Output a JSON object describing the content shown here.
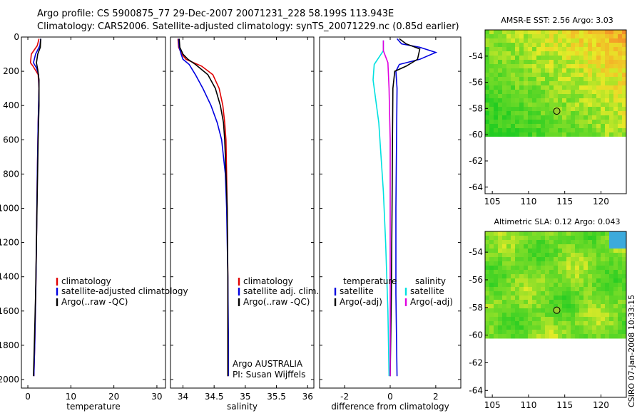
{
  "title": {
    "line1": "Argo profile: CS 5900875_77 29-Dec-2007 20071231_228 58.199S 113.943E",
    "line2": "Climatology: CARS2006. Satellite-adjusted climatology: synTS_20071229.nc (0.85d earlier)"
  },
  "colors": {
    "climatology": "#e00000",
    "satellite": "#0000e0",
    "argo": "#000000",
    "cyan": "#00e0e0",
    "magenta": "#e000e0"
  },
  "chart_data": [
    {
      "type": "line",
      "id": "temperature",
      "xlabel": "temperature",
      "xlim": [
        -1.5,
        32
      ],
      "ylim": [
        2050,
        0
      ],
      "xticks": [
        0,
        10,
        20,
        30
      ],
      "yticks": [
        0,
        200,
        400,
        600,
        800,
        1000,
        1200,
        1400,
        1600,
        1800,
        2000
      ],
      "series": [
        {
          "name": "climatology",
          "color": "#e00000",
          "points": [
            [
              2.6,
              10
            ],
            [
              2.2,
              50
            ],
            [
              0.8,
              100
            ],
            [
              0.6,
              150
            ],
            [
              1.2,
              170
            ],
            [
              2.4,
              220
            ],
            [
              2.6,
              300
            ],
            [
              2.4,
              500
            ],
            [
              2.2,
              800
            ],
            [
              2.1,
              1000
            ],
            [
              1.9,
              1400
            ],
            [
              1.6,
              1800
            ],
            [
              1.4,
              1980
            ]
          ]
        },
        {
          "name": "satellite-adjusted climatology",
          "color": "#0000e0",
          "points": [
            [
              3.0,
              10
            ],
            [
              2.8,
              50
            ],
            [
              1.8,
              100
            ],
            [
              1.3,
              150
            ],
            [
              2.0,
              180
            ],
            [
              2.5,
              220
            ],
            [
              2.6,
              300
            ],
            [
              2.4,
              500
            ],
            [
              2.2,
              800
            ],
            [
              2.1,
              1000
            ],
            [
              1.9,
              1400
            ],
            [
              1.6,
              1800
            ],
            [
              1.4,
              1980
            ]
          ]
        },
        {
          "name": "Argo(..raw -QC)",
          "color": "#000000",
          "points": [
            [
              3.0,
              10
            ],
            [
              2.9,
              60
            ],
            [
              2.3,
              100
            ],
            [
              2.0,
              150
            ],
            [
              2.3,
              190
            ],
            [
              2.6,
              250
            ],
            [
              2.6,
              400
            ],
            [
              2.4,
              600
            ],
            [
              2.2,
              900
            ],
            [
              2.0,
              1200
            ],
            [
              1.8,
              1500
            ],
            [
              1.5,
              1800
            ],
            [
              1.3,
              1980
            ]
          ]
        }
      ],
      "legend": [
        "climatology",
        "satellite-adjusted climatology",
        "Argo(..raw -QC)"
      ]
    },
    {
      "type": "line",
      "id": "salinity",
      "xlabel": "salinity",
      "xlim": [
        33.8,
        36.1
      ],
      "ylim": [
        2050,
        0
      ],
      "xticks": [
        34,
        34.5,
        35,
        35.5,
        36
      ],
      "yticks": [],
      "series": [
        {
          "name": "climatology",
          "color": "#e00000",
          "points": [
            [
              33.92,
              10
            ],
            [
              33.93,
              60
            ],
            [
              33.98,
              100
            ],
            [
              34.05,
              130
            ],
            [
              34.3,
              170
            ],
            [
              34.48,
              220
            ],
            [
              34.58,
              300
            ],
            [
              34.64,
              400
            ],
            [
              34.67,
              500
            ],
            [
              34.69,
              600
            ],
            [
              34.7,
              800
            ],
            [
              34.71,
              1000
            ],
            [
              34.72,
              1400
            ],
            [
              34.72,
              1800
            ],
            [
              34.72,
              1980
            ]
          ]
        },
        {
          "name": "satellite adj. clim.",
          "color": "#0000e0",
          "points": [
            [
              33.93,
              10
            ],
            [
              33.94,
              60
            ],
            [
              33.97,
              100
            ],
            [
              34.0,
              130
            ],
            [
              34.1,
              160
            ],
            [
              34.2,
              220
            ],
            [
              34.32,
              300
            ],
            [
              34.45,
              400
            ],
            [
              34.55,
              500
            ],
            [
              34.62,
              600
            ],
            [
              34.68,
              800
            ],
            [
              34.7,
              1000
            ],
            [
              34.72,
              1400
            ],
            [
              34.73,
              1800
            ],
            [
              34.73,
              1980
            ]
          ]
        },
        {
          "name": "Argo(..raw -QC)",
          "color": "#000000",
          "points": [
            [
              33.94,
              10
            ],
            [
              33.95,
              60
            ],
            [
              34.0,
              100
            ],
            [
              34.08,
              130
            ],
            [
              34.2,
              160
            ],
            [
              34.4,
              220
            ],
            [
              34.52,
              300
            ],
            [
              34.6,
              400
            ],
            [
              34.65,
              500
            ],
            [
              34.67,
              600
            ],
            [
              34.69,
              800
            ],
            [
              34.71,
              1000
            ],
            [
              34.72,
              1400
            ],
            [
              34.72,
              1800
            ],
            [
              34.72,
              1980
            ]
          ]
        }
      ],
      "legend": [
        "climatology",
        "satellite adj. clim.",
        "Argo(..raw -QC)"
      ],
      "annotation": [
        "Argo AUSTRALIA",
        "PI: Susan Wijffels"
      ]
    },
    {
      "type": "line",
      "id": "difference",
      "xlabel": "difference from climatology",
      "xlim": [
        -3.1,
        3.1
      ],
      "ylim": [
        2050,
        0
      ],
      "xticks": [
        -2,
        0,
        2
      ],
      "yticks": [],
      "series": [
        {
          "name": "temperature satellite",
          "color": "#0000e0",
          "points": [
            [
              0.3,
              10
            ],
            [
              0.5,
              40
            ],
            [
              1.3,
              60
            ],
            [
              2.0,
              90
            ],
            [
              1.3,
              130
            ],
            [
              0.4,
              160
            ],
            [
              0.25,
              200
            ],
            [
              0.3,
              300
            ],
            [
              0.28,
              600
            ],
            [
              0.25,
              1000
            ],
            [
              0.25,
              1500
            ],
            [
              0.3,
              1980
            ]
          ]
        },
        {
          "name": "temperature Argo(-adj)",
          "color": "#000000",
          "points": [
            [
              0.4,
              10
            ],
            [
              0.7,
              40
            ],
            [
              1.3,
              70
            ],
            [
              1.2,
              130
            ],
            [
              0.7,
              170
            ],
            [
              0.2,
              200
            ],
            [
              0.12,
              300
            ],
            [
              0.1,
              600
            ],
            [
              0.08,
              1000
            ],
            [
              0.05,
              1500
            ],
            [
              0.0,
              1980
            ]
          ]
        },
        {
          "name": "salinity satellite",
          "color": "#00e0e0",
          "points": [
            [
              -0.3,
              20
            ],
            [
              -0.3,
              80
            ],
            [
              -0.7,
              160
            ],
            [
              -0.75,
              250
            ],
            [
              -0.5,
              500
            ],
            [
              -0.3,
              900
            ],
            [
              -0.2,
              1200
            ],
            [
              -0.1,
              1600
            ],
            [
              -0.05,
              1980
            ]
          ]
        },
        {
          "name": "salinity Argo(-adj)",
          "color": "#e000e0",
          "points": [
            [
              -0.3,
              20
            ],
            [
              -0.3,
              80
            ],
            [
              -0.1,
              150
            ],
            [
              -0.05,
              300
            ],
            [
              0.0,
              600
            ],
            [
              0.0,
              1000
            ],
            [
              0.0,
              1500
            ],
            [
              0.0,
              1980
            ]
          ]
        }
      ],
      "legend_header": [
        "temperature",
        "salinity"
      ],
      "legend": [
        "satellite",
        "Argo(-adj)",
        "satellite",
        "Argo(-adj)"
      ]
    },
    {
      "type": "heatmap",
      "id": "sst_map",
      "title": "AMSR-E SST: 2.56  Argo: 3.03",
      "xlim": [
        104,
        123.5
      ],
      "ylim": [
        -64.5,
        -52
      ],
      "data_south_limit": -60,
      "xticks": [
        105,
        110,
        115,
        120
      ],
      "yticks": [
        -54,
        -56,
        -58,
        -60,
        -62,
        -64
      ],
      "float_position": [
        113.9,
        -58.2
      ]
    },
    {
      "type": "heatmap",
      "id": "sla_map",
      "title": "Altimetric SLA: 0.12  Argo: 0.043",
      "xlim": [
        104,
        123.5
      ],
      "ylim": [
        -64.5,
        -52.5
      ],
      "data_south_limit": -60,
      "xticks": [
        105,
        110,
        115,
        120
      ],
      "yticks": [
        -54,
        -56,
        -58,
        -60,
        -62,
        -64
      ],
      "float_position": [
        113.9,
        -58.2
      ]
    }
  ],
  "credit": "CSIRO  07-Jan-2008 10:33:15"
}
